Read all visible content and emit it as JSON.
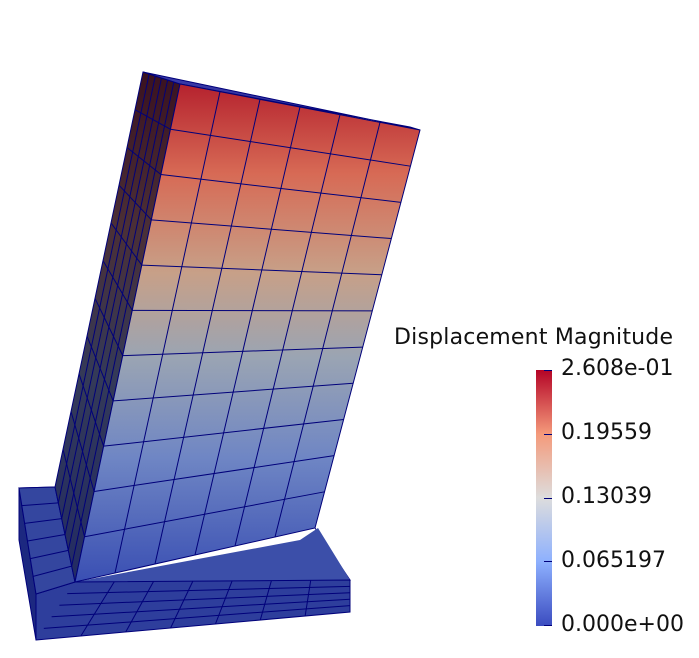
{
  "view": {
    "mode": "3D render",
    "mesh": {
      "columns": 6,
      "rows": 11,
      "edge_color": "#00007a"
    }
  },
  "legend": {
    "title": "Displacement Magnitude",
    "colormap": [
      "#3b4cc0",
      "#8db0fe",
      "#dddddd",
      "#f49a7b",
      "#b40426"
    ],
    "ticks": [
      "2.608e-01",
      "0.19559",
      "0.13039",
      "0.065197",
      "0.000e+00"
    ],
    "range": [
      0.0,
      0.2608
    ]
  },
  "colors": {
    "low": "#3b4cc0",
    "mid": "#dddddd",
    "high": "#b40426",
    "mesh_lines": "#00007a"
  }
}
